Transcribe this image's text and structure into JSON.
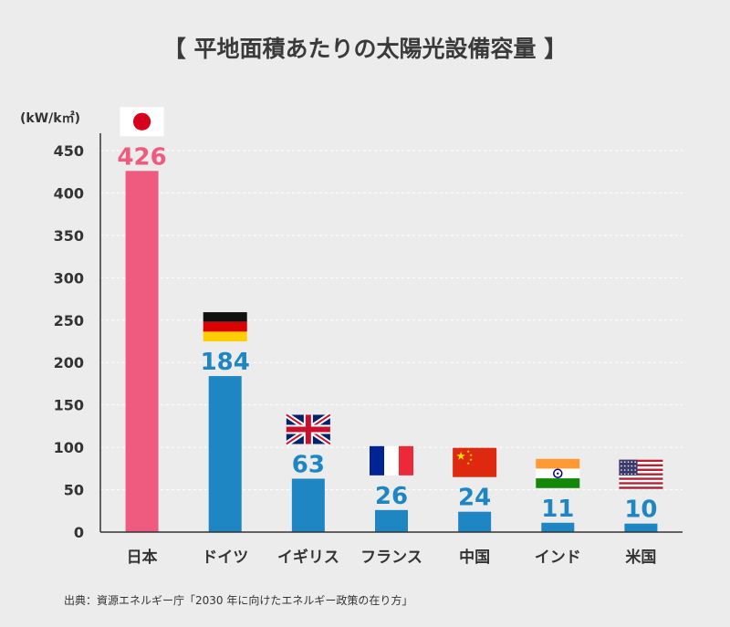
{
  "chart_data": {
    "type": "bar",
    "title": "【 平地面積あたりの太陽光設備容量 】",
    "ylabel": "(kW/k㎡)",
    "categories": [
      "日本",
      "ドイツ",
      "イギリス",
      "フランス",
      "中国",
      "インド",
      "米国"
    ],
    "values": [
      426,
      184,
      63,
      26,
      24,
      11,
      10
    ],
    "ylim": [
      0,
      450
    ],
    "yticks": [
      0,
      50,
      100,
      150,
      200,
      250,
      300,
      350,
      400,
      450
    ],
    "grid": true,
    "highlight_category": "日本",
    "colors": {
      "highlight": "#ef5b7f",
      "default": "#1d86c3",
      "grid": "#ffffff",
      "axis": "#333333"
    },
    "flags": [
      "japan-flag",
      "germany-flag",
      "uk-flag",
      "france-flag",
      "china-flag",
      "india-flag",
      "usa-flag"
    ]
  },
  "source": "出典：資源エネルギー庁「2030 年に向けたエネルギー政策の在り方」"
}
